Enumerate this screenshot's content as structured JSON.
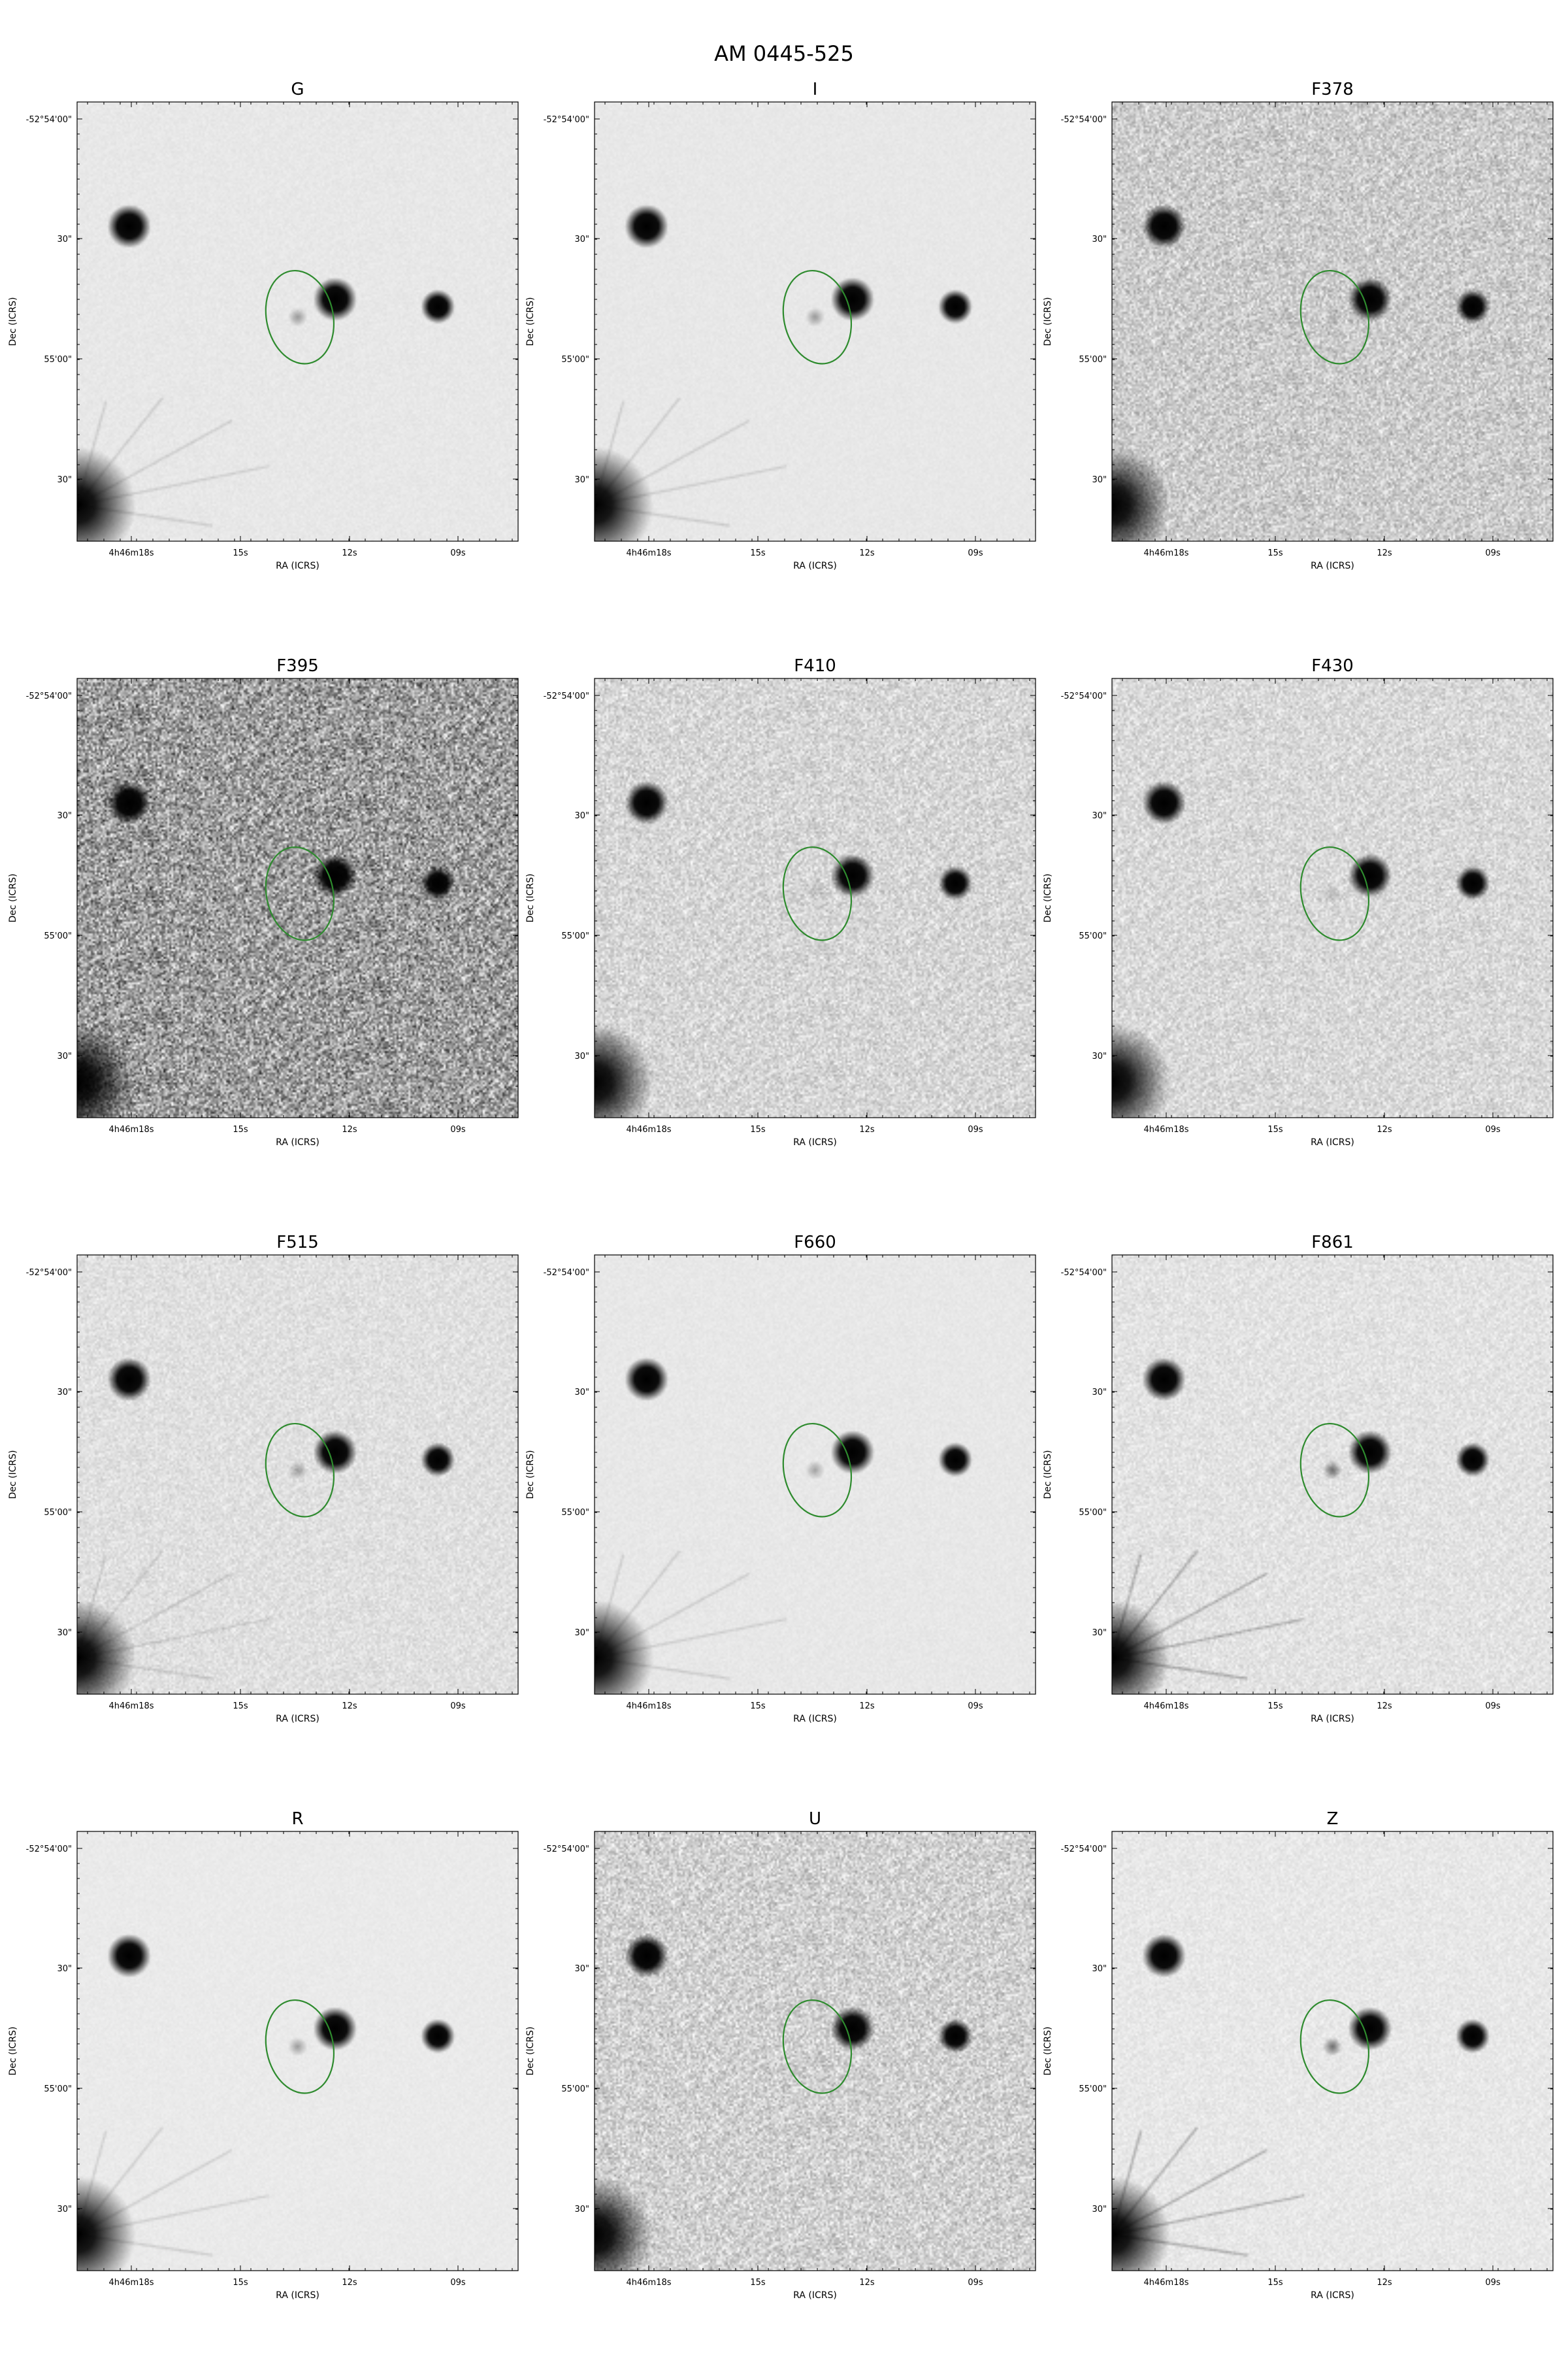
{
  "title": "AM 0445-525",
  "colors": {
    "aperture": "#2e8b2e",
    "star": "#000000",
    "frame": "#000000"
  },
  "axes": {
    "xlabel": "RA (ICRS)",
    "ylabel": "Dec (ICRS)",
    "xticks": [
      "4h46m18s",
      "15s",
      "12s",
      "09s"
    ],
    "yticks": [
      "-52°54'00\"",
      "30\"",
      "55'00\"",
      "30\""
    ]
  },
  "panels": [
    {
      "band": "G",
      "noise": 0.05,
      "bg": 0.91,
      "galaxy": 0.35,
      "bright": "normal"
    },
    {
      "band": "I",
      "noise": 0.04,
      "bg": 0.91,
      "galaxy": 0.35,
      "bright": "normal"
    },
    {
      "band": "F378",
      "noise": 0.35,
      "bg": 0.8,
      "galaxy": 0.15,
      "bright": "weak"
    },
    {
      "band": "F395",
      "noise": 0.75,
      "bg": 0.62,
      "galaxy": 0.0,
      "bright": "weak"
    },
    {
      "band": "F410",
      "noise": 0.28,
      "bg": 0.84,
      "galaxy": 0.1,
      "bright": "weak"
    },
    {
      "band": "F430",
      "noise": 0.25,
      "bg": 0.85,
      "galaxy": 0.15,
      "bright": "weak"
    },
    {
      "band": "F515",
      "noise": 0.15,
      "bg": 0.88,
      "galaxy": 0.3,
      "bright": "normal"
    },
    {
      "band": "F660",
      "noise": 0.05,
      "bg": 0.91,
      "galaxy": 0.3,
      "bright": "normal"
    },
    {
      "band": "F861",
      "noise": 0.15,
      "bg": 0.89,
      "galaxy": 0.55,
      "bright": "strong"
    },
    {
      "band": "R",
      "noise": 0.04,
      "bg": 0.92,
      "galaxy": 0.35,
      "bright": "normal"
    },
    {
      "band": "U",
      "noise": 0.35,
      "bg": 0.82,
      "galaxy": 0.0,
      "bright": "weak"
    },
    {
      "band": "Z",
      "noise": 0.1,
      "bg": 0.91,
      "galaxy": 0.55,
      "bright": "strong"
    }
  ]
}
